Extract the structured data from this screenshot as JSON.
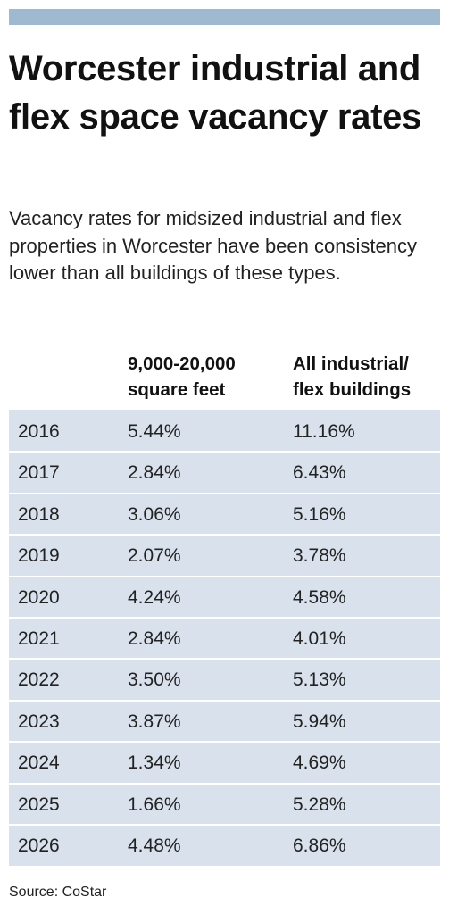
{
  "title": "Worcester industrial and flex space vacancy rates",
  "subtitle": "Vacancy rates for midsized industrial and flex properties in Worcester have been consistency lower than all buildings of these types.",
  "source": "Source: CoStar",
  "colors": {
    "top_bar": "#9fbad0",
    "table_background": "#d8e1ec",
    "row_separator": "#ffffff"
  },
  "chart_data": {
    "type": "table",
    "title": "Worcester industrial and flex space vacancy rates",
    "columns": [
      {
        "line1": "",
        "line2": ""
      },
      {
        "line1": "9,000-20,000",
        "line2": "square feet"
      },
      {
        "line1": "All industrial/",
        "line2": "flex buildings"
      }
    ],
    "rows": [
      {
        "year": "2016",
        "midsized": "5.44%",
        "all": "11.16%"
      },
      {
        "year": "2017",
        "midsized": "2.84%",
        "all": "6.43%"
      },
      {
        "year": "2018",
        "midsized": "3.06%",
        "all": "5.16%"
      },
      {
        "year": "2019",
        "midsized": "2.07%",
        "all": "3.78%"
      },
      {
        "year": "2020",
        "midsized": "4.24%",
        "all": "4.58%"
      },
      {
        "year": "2021",
        "midsized": "2.84%",
        "all": "4.01%"
      },
      {
        "year": "2022",
        "midsized": "3.50%",
        "all": "5.13%"
      },
      {
        "year": "2023",
        "midsized": "3.87%",
        "all": "5.94%"
      },
      {
        "year": "2024",
        "midsized": "1.34%",
        "all": "4.69%"
      },
      {
        "year": "2025",
        "midsized": "1.66%",
        "all": "5.28%"
      },
      {
        "year": "2026",
        "midsized": "4.48%",
        "all": "6.86%"
      }
    ]
  }
}
